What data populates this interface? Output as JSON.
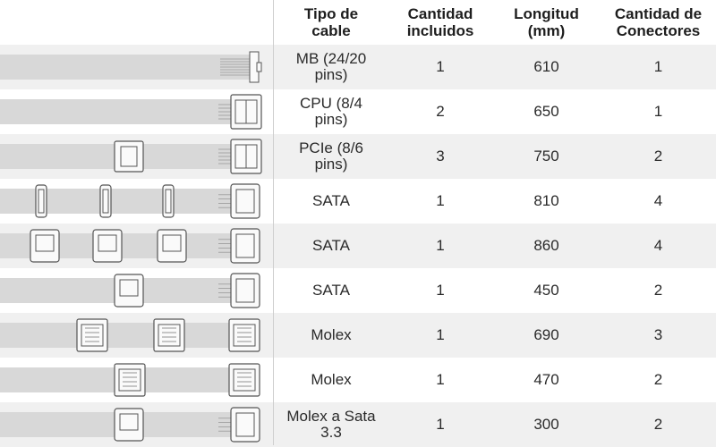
{
  "columns": [
    "Tipo de\ncable",
    "Cantidad\nincluidos",
    "Longitud\n(mm)",
    "Cantidad de\nConectores"
  ],
  "rows": [
    {
      "tipo": "MB (24/20\npins)",
      "cantidad": "1",
      "longitud": "610",
      "conectores": "1",
      "cable_image": "mb-24-20-pin-cable-icon"
    },
    {
      "tipo": "CPU (8/4\npins)",
      "cantidad": "2",
      "longitud": "650",
      "conectores": "1",
      "cable_image": "cpu-8-4-pin-cable-icon"
    },
    {
      "tipo": "PCIe (8/6\npins)",
      "cantidad": "3",
      "longitud": "750",
      "conectores": "2",
      "cable_image": "pcie-8-6-pin-cable-icon"
    },
    {
      "tipo": "SATA",
      "cantidad": "1",
      "longitud": "810",
      "conectores": "4",
      "cable_image": "sata-slim-4-connector-cable-icon"
    },
    {
      "tipo": "SATA",
      "cantidad": "1",
      "longitud": "860",
      "conectores": "4",
      "cable_image": "sata-4-connector-cable-icon"
    },
    {
      "tipo": "SATA",
      "cantidad": "1",
      "longitud": "450",
      "conectores": "2",
      "cable_image": "sata-2-connector-cable-icon"
    },
    {
      "tipo": "Molex",
      "cantidad": "1",
      "longitud": "690",
      "conectores": "3",
      "cable_image": "molex-3-connector-cable-icon"
    },
    {
      "tipo": "Molex",
      "cantidad": "1",
      "longitud": "470",
      "conectores": "2",
      "cable_image": "molex-2-connector-cable-icon"
    },
    {
      "tipo": "Molex a Sata\n3.3",
      "cantidad": "1",
      "longitud": "300",
      "conectores": "2",
      "cable_image": "molex-to-sata-cable-icon"
    }
  ]
}
